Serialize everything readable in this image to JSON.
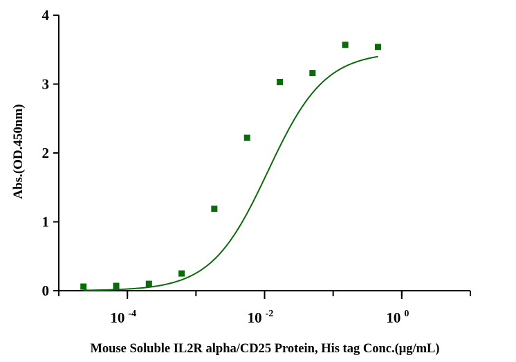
{
  "chart_data": {
    "type": "scatter",
    "title": "",
    "xlabel": "Mouse Soluble IL2R alpha/CD25 Protein, His tag Conc.(μg/mL)",
    "ylabel": "Abs.(OD.450nm)",
    "x_scale": "log10",
    "xlim": [
      1e-05,
      10
    ],
    "ylim": [
      0,
      4
    ],
    "grid": false,
    "x_ticks": [
      {
        "value": 0.0001,
        "base": "10",
        "exp": "-4"
      },
      {
        "value": 0.01,
        "base": "10",
        "exp": "-2"
      },
      {
        "value": 1,
        "base": "10",
        "exp": "0"
      }
    ],
    "y_ticks": [
      {
        "value": 0,
        "label": "0"
      },
      {
        "value": 1,
        "label": "1"
      },
      {
        "value": 2,
        "label": "2"
      },
      {
        "value": 3,
        "label": "3"
      },
      {
        "value": 4,
        "label": "4"
      }
    ],
    "series": [
      {
        "color": "#0a6b0a",
        "marker": "square",
        "points": [
          {
            "x": 2.29e-05,
            "y": 0.06
          },
          {
            "x": 6.87e-05,
            "y": 0.07
          },
          {
            "x": 0.000206,
            "y": 0.1
          },
          {
            "x": 0.000617,
            "y": 0.25
          },
          {
            "x": 0.00185,
            "y": 1.19
          },
          {
            "x": 0.00556,
            "y": 2.22
          },
          {
            "x": 0.0167,
            "y": 3.03
          },
          {
            "x": 0.05,
            "y": 3.16
          },
          {
            "x": 0.15,
            "y": 3.57
          },
          {
            "x": 0.45,
            "y": 3.54
          }
        ]
      }
    ],
    "fit_curve": {
      "type": "4PL",
      "color": "#0a6b0a",
      "bottom": 0.0,
      "top": 3.47,
      "ec50": 0.0112,
      "hill": 1.05
    }
  }
}
